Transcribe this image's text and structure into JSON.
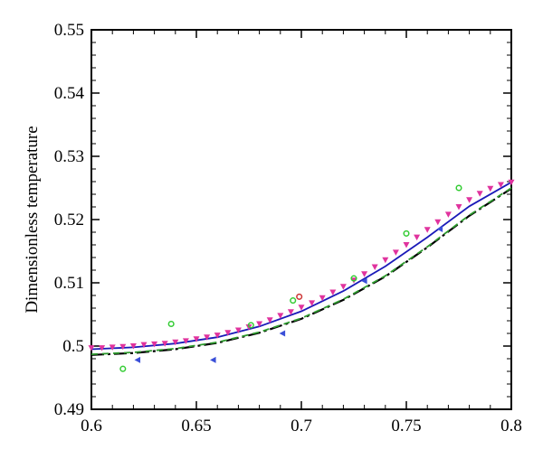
{
  "chart_data": {
    "type": "line",
    "xlabel": "",
    "ylabel": "Dimensionless temperature",
    "xlim": [
      0.6,
      0.8
    ],
    "ylim": [
      0.49,
      0.55
    ],
    "grid": false,
    "legend": "none",
    "x_ticks": [
      0.6,
      0.65,
      0.7,
      0.75,
      0.8
    ],
    "x_tick_labels": [
      "0.6",
      "0.65",
      "0.7",
      "0.75",
      "0.8"
    ],
    "y_ticks": [
      0.49,
      0.5,
      0.51,
      0.52,
      0.53,
      0.54,
      0.55
    ],
    "y_tick_labels": [
      "0.49",
      "0.5",
      "0.51",
      "0.52",
      "0.53",
      "0.54",
      "0.55"
    ],
    "series": [
      {
        "style": "solid",
        "color": "#1a1ab8",
        "x": [
          0.6,
          0.62,
          0.64,
          0.66,
          0.68,
          0.7,
          0.72,
          0.74,
          0.76,
          0.78,
          0.8
        ],
        "y": [
          0.4995,
          0.4998,
          0.5004,
          0.5014,
          0.5031,
          0.5055,
          0.5087,
          0.5126,
          0.5172,
          0.5221,
          0.5259
        ]
      },
      {
        "style": "dash-dot",
        "color": "#000000",
        "x": [
          0.6,
          0.62,
          0.64,
          0.66,
          0.68,
          0.7,
          0.72,
          0.74,
          0.76,
          0.78,
          0.8
        ],
        "y": [
          0.4986,
          0.4989,
          0.4995,
          0.5005,
          0.5021,
          0.5043,
          0.5073,
          0.511,
          0.5156,
          0.5206,
          0.5249
        ]
      },
      {
        "style": "dash",
        "color": "#2e9b2e",
        "x": [
          0.6,
          0.62,
          0.64,
          0.66,
          0.68,
          0.7,
          0.72,
          0.74,
          0.76,
          0.78,
          0.8
        ],
        "y": [
          0.4987,
          0.499,
          0.4996,
          0.5006,
          0.5022,
          0.5044,
          0.5074,
          0.5111,
          0.5157,
          0.5207,
          0.525
        ]
      },
      {
        "style": "triangle-down",
        "color": "#e0339e",
        "x": [
          0.6,
          0.605,
          0.61,
          0.615,
          0.62,
          0.625,
          0.63,
          0.635,
          0.64,
          0.645,
          0.65,
          0.655,
          0.66,
          0.665,
          0.67,
          0.675,
          0.68,
          0.685,
          0.69,
          0.695,
          0.7,
          0.705,
          0.71,
          0.715,
          0.72,
          0.725,
          0.73,
          0.735,
          0.74,
          0.745,
          0.75,
          0.755,
          0.76,
          0.765,
          0.77,
          0.775,
          0.78,
          0.785,
          0.79,
          0.795,
          0.8
        ],
        "y": [
          0.4997,
          0.4997,
          0.4998,
          0.4999,
          0.5,
          0.5002,
          0.5003,
          0.5004,
          0.5006,
          0.5008,
          0.5011,
          0.5014,
          0.5017,
          0.5021,
          0.5025,
          0.503,
          0.5035,
          0.5041,
          0.5048,
          0.5054,
          0.5061,
          0.5068,
          0.5076,
          0.5085,
          0.5094,
          0.5104,
          0.5114,
          0.5125,
          0.5136,
          0.5148,
          0.516,
          0.5172,
          0.5184,
          0.5196,
          0.5208,
          0.522,
          0.5231,
          0.5241,
          0.5249,
          0.5255,
          0.5259
        ]
      },
      {
        "style": "triangle-left",
        "color": "#3a4fd8",
        "x": [
          0.622,
          0.658,
          0.691,
          0.73,
          0.766
        ],
        "y": [
          0.4978,
          0.4978,
          0.502,
          0.5103,
          0.5185
        ]
      },
      {
        "style": "circle-open",
        "color": "#33cc33",
        "x": [
          0.615,
          0.638,
          0.676,
          0.696,
          0.725,
          0.75,
          0.775
        ],
        "y": [
          0.4964,
          0.5035,
          0.5033,
          0.5072,
          0.5107,
          0.5178,
          0.525
        ]
      },
      {
        "style": "circle-open",
        "color": "#cc3333",
        "x": [
          0.699
        ],
        "y": [
          0.5078
        ]
      }
    ]
  }
}
